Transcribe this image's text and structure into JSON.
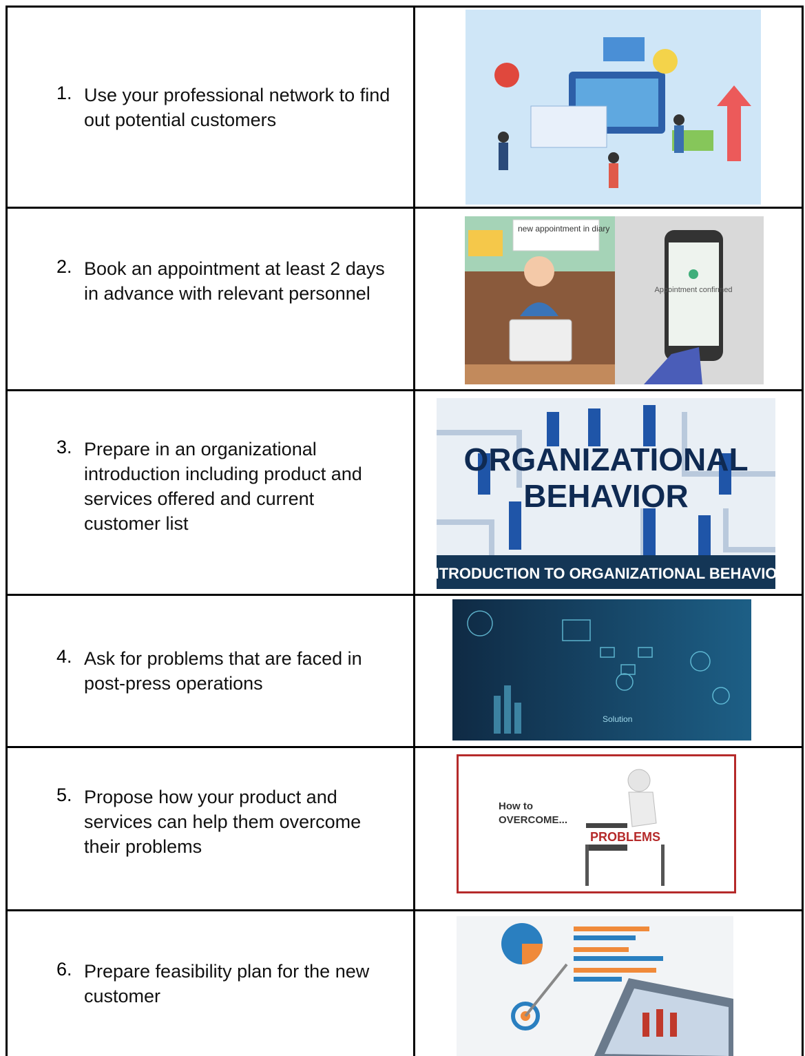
{
  "rows": [
    {
      "number": "1.",
      "text": "Use your professional network to find out potential customers"
    },
    {
      "number": "2.",
      "text": "Book an appointment at least 2 days in advance with relevant personnel",
      "image_texts": [
        "new appointment in diary",
        "Appointment confirmed"
      ]
    },
    {
      "number": "3.",
      "text": "Prepare in an organizational introduction including product and services offered and current customer list",
      "image_texts": [
        "ORGANIZATIONAL",
        "BEHAVIOR",
        "INTRODUCTION  TO ORGANIZATIONAL BEHAVIOR"
      ]
    },
    {
      "number": "4.",
      "text": "Ask for problems that are faced in post-press operations",
      "image_texts": [
        "Solution"
      ]
    },
    {
      "number": "5.",
      "text": "Propose how your product and services can help them overcome their problems",
      "image_texts": [
        "How to",
        "OVERCOME...",
        "PROBLEMS"
      ]
    },
    {
      "number": "6.",
      "text": "Prepare feasibility plan for the new customer"
    }
  ]
}
